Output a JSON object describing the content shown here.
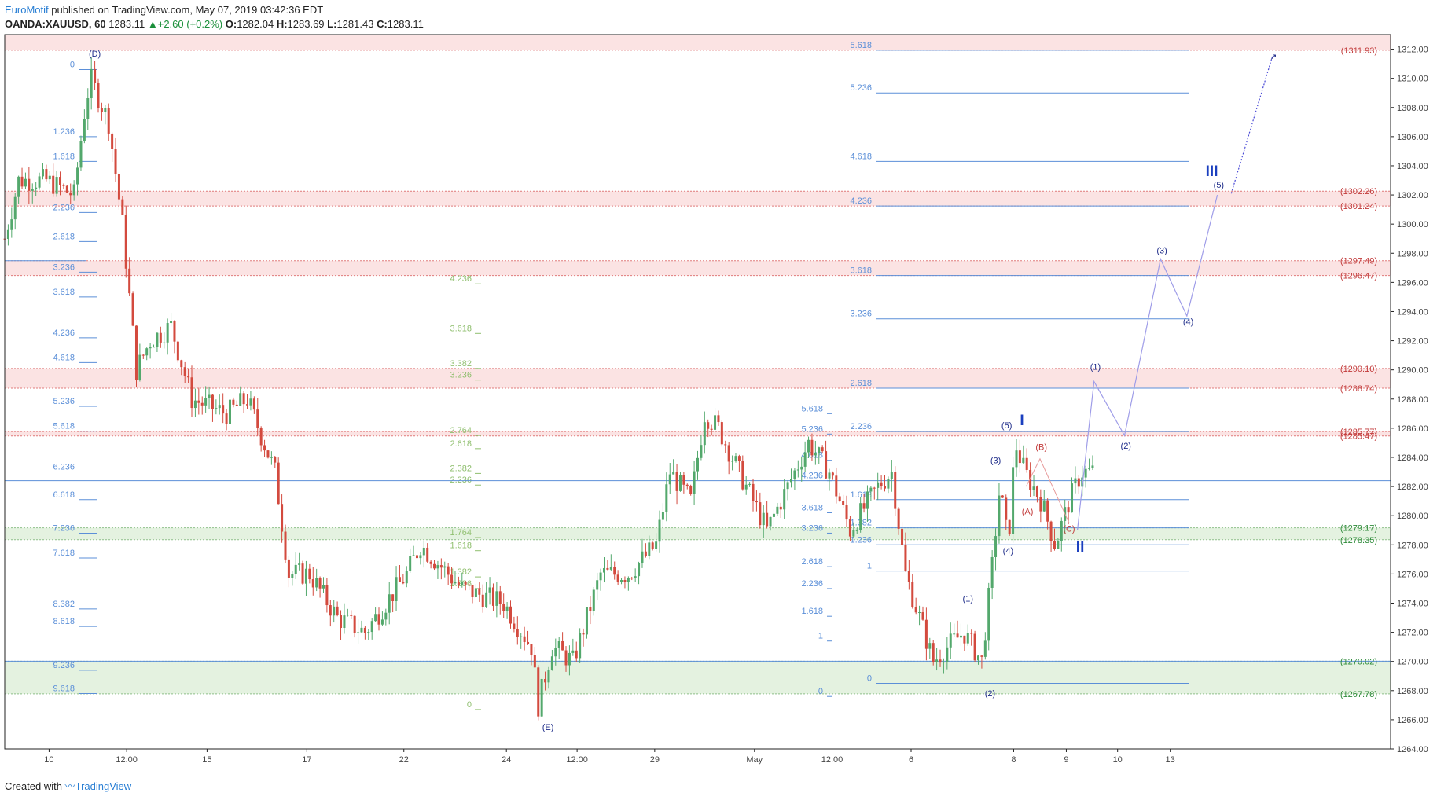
{
  "header": {
    "brand": "EuroMotif",
    "published": " published on TradingView.com, May 07, 2019 03:42:36 EDT",
    "symbol": "OANDA:XAUUSD, 60",
    "price": "1283.11",
    "change": "+2.60 (+0.2%)",
    "o_label": "O:",
    "o_val": "1282.04",
    "h_label": "H:",
    "h_val": "1283.69",
    "l_label": "L:",
    "l_val": "1281.43",
    "c_label": "C:",
    "c_val": "1283.11"
  },
  "footer": {
    "created": "Created with",
    "tv": "TradingView"
  },
  "colors": {
    "bull": "#53a86c",
    "bear": "#d34a3e",
    "fib_blue": "#5b8fd8",
    "fib_green": "#8fbf6e",
    "zone_red": "#fbe3e3",
    "zone_green": "#e4f2e0",
    "wave": "#1f2d8a",
    "projection": "#9f9de8"
  },
  "chart_data": {
    "type": "candlestick",
    "ylim": [
      1264,
      1313
    ],
    "y_ticks": [
      "1312.00",
      "1310.00",
      "1308.00",
      "1306.00",
      "1304.00",
      "1302.00",
      "1300.00",
      "1298.00",
      "1296.00",
      "1294.00",
      "1292.00",
      "1290.00",
      "1288.00",
      "1286.00",
      "1284.00",
      "1282.00",
      "1280.00",
      "1278.00",
      "1276.00",
      "1274.00",
      "1272.00",
      "1270.00",
      "1268.00",
      "1266.00",
      "1264.00"
    ],
    "x_ticks": [
      "10",
      "12:00",
      "15",
      "17",
      "22",
      "24",
      "12:00",
      "29",
      "May",
      "12:00",
      "6",
      "8",
      "9",
      "10",
      "13"
    ],
    "price_labels": [
      {
        "text": "(1311.93)",
        "price": 1311.93,
        "tone": "red"
      },
      {
        "text": "(1302.26)",
        "price": 1302.26,
        "tone": "red"
      },
      {
        "text": "(1301.24)",
        "price": 1301.24,
        "tone": "red"
      },
      {
        "text": "(1297.49)",
        "price": 1297.49,
        "tone": "red"
      },
      {
        "text": "(1296.47)",
        "price": 1296.47,
        "tone": "red"
      },
      {
        "text": "(1290.10)",
        "price": 1290.1,
        "tone": "red"
      },
      {
        "text": "(1288.74)",
        "price": 1288.74,
        "tone": "red"
      },
      {
        "text": "(1285.77)",
        "price": 1285.77,
        "tone": "red"
      },
      {
        "text": "(1285.47)",
        "price": 1285.47,
        "tone": "red"
      },
      {
        "text": "(1279.17)",
        "price": 1279.17,
        "tone": "green"
      },
      {
        "text": "(1278.35)",
        "price": 1278.35,
        "tone": "green"
      },
      {
        "text": "(1270.02)",
        "price": 1270.02,
        "tone": "green"
      },
      {
        "text": "(1267.78)",
        "price": 1267.78,
        "tone": "green"
      }
    ],
    "zones": [
      {
        "from": 1311.93,
        "to": 1313,
        "tone": "red"
      },
      {
        "from": 1301.24,
        "to": 1302.26,
        "tone": "red"
      },
      {
        "from": 1296.47,
        "to": 1297.49,
        "tone": "red"
      },
      {
        "from": 1288.74,
        "to": 1290.1,
        "tone": "red"
      },
      {
        "from": 1285.47,
        "to": 1285.77,
        "tone": "red"
      },
      {
        "from": 1278.35,
        "to": 1279.17,
        "tone": "green"
      },
      {
        "from": 1267.78,
        "to": 1270.02,
        "tone": "green"
      }
    ],
    "fib_left": [
      {
        "ratio": "0",
        "price": 1310.6
      },
      {
        "ratio": "1.236",
        "price": 1306.0
      },
      {
        "ratio": "1.618",
        "price": 1304.3
      },
      {
        "ratio": "2.236",
        "price": 1300.8
      },
      {
        "ratio": "2.618",
        "price": 1298.8
      },
      {
        "ratio": "3.236",
        "price": 1296.7
      },
      {
        "ratio": "3.618",
        "price": 1295.0
      },
      {
        "ratio": "4.236",
        "price": 1292.2
      },
      {
        "ratio": "4.618",
        "price": 1290.5
      },
      {
        "ratio": "5.236",
        "price": 1287.5
      },
      {
        "ratio": "5.618",
        "price": 1285.8
      },
      {
        "ratio": "6.236",
        "price": 1283.0
      },
      {
        "ratio": "6.618",
        "price": 1281.1
      },
      {
        "ratio": "7.236",
        "price": 1278.8
      },
      {
        "ratio": "7.618",
        "price": 1277.1
      },
      {
        "ratio": "8.382",
        "price": 1273.6
      },
      {
        "ratio": "8.618",
        "price": 1272.4
      },
      {
        "ratio": "9.236",
        "price": 1269.4
      },
      {
        "ratio": "9.618",
        "price": 1267.8
      }
    ],
    "fib_mid": [
      {
        "ratio": "4.236",
        "price": 1295.9
      },
      {
        "ratio": "3.618",
        "price": 1292.5
      },
      {
        "ratio": "3.382",
        "price": 1290.1
      },
      {
        "ratio": "3.236",
        "price": 1289.3
      },
      {
        "ratio": "2.764",
        "price": 1285.5
      },
      {
        "ratio": "2.618",
        "price": 1284.6
      },
      {
        "ratio": "2.382",
        "price": 1282.9
      },
      {
        "ratio": "2.236",
        "price": 1282.1
      },
      {
        "ratio": "1.764",
        "price": 1278.5
      },
      {
        "ratio": "1.618",
        "price": 1277.6
      },
      {
        "ratio": "1.382",
        "price": 1275.8
      },
      {
        "ratio": "1.236",
        "price": 1275.0
      },
      {
        "ratio": "0",
        "price": 1266.7
      }
    ],
    "fib_may": [
      {
        "ratio": "5.618",
        "price": 1287.0
      },
      {
        "ratio": "5.236",
        "price": 1285.6
      },
      {
        "ratio": "4.618",
        "price": 1283.8
      },
      {
        "ratio": "4.236",
        "price": 1282.4
      },
      {
        "ratio": "3.618",
        "price": 1280.2
      },
      {
        "ratio": "3.236",
        "price": 1278.8
      },
      {
        "ratio": "2.618",
        "price": 1276.5
      },
      {
        "ratio": "2.236",
        "price": 1275.0
      },
      {
        "ratio": "1.618",
        "price": 1273.1
      },
      {
        "ratio": "1",
        "price": 1271.4
      },
      {
        "ratio": "0",
        "price": 1267.6
      }
    ],
    "fib_right": [
      {
        "ratio": "5.618",
        "price": 1311.93
      },
      {
        "ratio": "5.236",
        "price": 1309.0
      },
      {
        "ratio": "4.618",
        "price": 1304.3
      },
      {
        "ratio": "4.236",
        "price": 1301.24
      },
      {
        "ratio": "3.618",
        "price": 1296.47
      },
      {
        "ratio": "3.236",
        "price": 1293.5
      },
      {
        "ratio": "2.618",
        "price": 1288.74
      },
      {
        "ratio": "2.236",
        "price": 1285.77
      },
      {
        "ratio": "1.618",
        "price": 1281.1
      },
      {
        "ratio": "1.382",
        "price": 1279.17
      },
      {
        "ratio": "1.236",
        "price": 1278.0
      },
      {
        "ratio": "1",
        "price": 1276.2
      },
      {
        "ratio": "0",
        "price": 1268.5
      }
    ],
    "wave_labels": [
      {
        "text": "(D)",
        "x": 0.065,
        "price": 1311.5
      },
      {
        "text": "(E)",
        "x": 0.392,
        "price": 1265.3
      },
      {
        "text": "(1)",
        "x": 0.695,
        "price": 1274.1
      },
      {
        "text": "(2)",
        "x": 0.711,
        "price": 1267.6
      },
      {
        "text": "(3)",
        "x": 0.715,
        "price": 1283.6
      },
      {
        "text": "(4)",
        "x": 0.724,
        "price": 1277.4
      },
      {
        "text": "(5)",
        "x": 0.723,
        "price": 1286.0
      },
      {
        "text": "(1)",
        "x": 0.787,
        "price": 1290.0
      },
      {
        "text": "(2)",
        "x": 0.809,
        "price": 1284.6
      },
      {
        "text": "(3)",
        "x": 0.835,
        "price": 1298.0
      },
      {
        "text": "(4)",
        "x": 0.854,
        "price": 1293.1
      },
      {
        "text": "(5)",
        "x": 0.876,
        "price": 1302.5
      }
    ],
    "wave_labels_red": [
      {
        "text": "(A)",
        "x": 0.738,
        "price": 1280.1
      },
      {
        "text": "(B)",
        "x": 0.748,
        "price": 1284.5
      },
      {
        "text": "(C)",
        "x": 0.768,
        "price": 1278.9
      }
    ],
    "roman_labels": [
      {
        "text": "I",
        "x": 0.734,
        "price": 1286.2
      },
      {
        "text": "II",
        "x": 0.776,
        "price": 1277.5
      },
      {
        "text": "III",
        "x": 0.871,
        "price": 1303.3
      }
    ],
    "projection_path": [
      {
        "x": 0.774,
        "price": 1279.0
      },
      {
        "x": 0.786,
        "price": 1289.2
      },
      {
        "x": 0.808,
        "price": 1285.5
      },
      {
        "x": 0.834,
        "price": 1297.6
      },
      {
        "x": 0.853,
        "price": 1293.7
      },
      {
        "x": 0.875,
        "price": 1302.0
      }
    ],
    "projection_dotted": [
      {
        "x": 0.885,
        "price": 1302.1
      },
      {
        "x": 0.915,
        "price": 1311.6
      }
    ],
    "abc_path": [
      {
        "x": 0.737,
        "price": 1282.0
      },
      {
        "x": 0.747,
        "price": 1283.9
      },
      {
        "x": 0.768,
        "price": 1279.5
      }
    ]
  }
}
